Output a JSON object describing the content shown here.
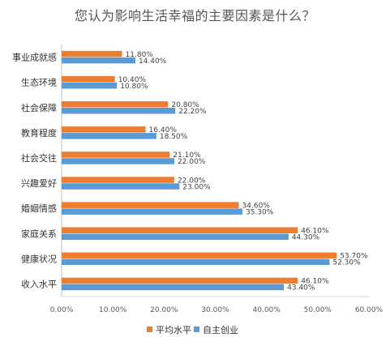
{
  "chart_data": {
    "type": "bar",
    "orientation": "horizontal",
    "title": "您认为影响生活幸福的主要因素是什么？",
    "categories": [
      "事业成就感",
      "生态环境",
      "社会保障",
      "教育程度",
      "社会交往",
      "兴趣爱好",
      "婚姻情感",
      "家庭关系",
      "健康状况",
      "收入水平"
    ],
    "series": [
      {
        "name": "平均水平",
        "color": "#ED7D31",
        "values": [
          11.8,
          10.4,
          20.8,
          16.4,
          21.1,
          22.0,
          34.6,
          46.1,
          53.7,
          46.1
        ],
        "labels": [
          "11.80%",
          "10.40%",
          "20.80%",
          "16.40%",
          "21.10%",
          "22.00%",
          "34.60%",
          "46.10%",
          "53.70%",
          "46.10%"
        ]
      },
      {
        "name": "自主创业",
        "color": "#5B9BD5",
        "values": [
          14.4,
          10.8,
          22.2,
          18.5,
          22.0,
          23.0,
          35.3,
          44.3,
          52.3,
          43.4
        ],
        "labels": [
          "14.40%",
          "10.80%",
          "22.20%",
          "18.50%",
          "22.00%",
          "23.00%",
          "35.30%",
          "44.30%",
          "52.30%",
          "43.40%"
        ]
      }
    ],
    "xlim": [
      0,
      60
    ],
    "xticks": [
      0,
      10,
      20,
      30,
      40,
      50,
      60
    ],
    "xtick_labels": [
      "0.00%",
      "10.00%",
      "20.00%",
      "30.00%",
      "40.00%",
      "50.00%",
      "60.00%"
    ],
    "grid": false,
    "legend": "bottom"
  }
}
